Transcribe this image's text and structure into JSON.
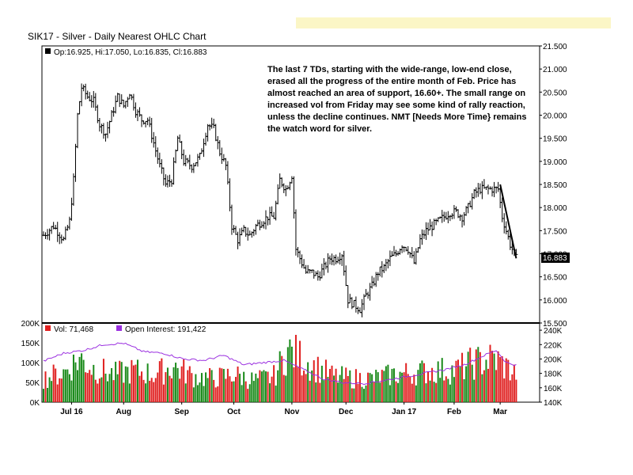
{
  "header": {
    "title": "SIK17 - Silver - Daily Nearest OHLC Chart",
    "banner_color": "#fbf6c6"
  },
  "chart_data": [
    {
      "type": "ohlc",
      "legend": "Op:16.925, Hi:17.050, Lo:16.835, Cl:16.883",
      "last_close_label": "16.883",
      "ylim": [
        15.5,
        21.5
      ],
      "yticks": [
        "15.500",
        "16.000",
        "16.500",
        "17.000",
        "17.500",
        "18.000",
        "18.500",
        "19.000",
        "19.500",
        "20.000",
        "20.500",
        "21.000",
        "21.500"
      ],
      "xlabels": [
        "Jul 16",
        "Aug",
        "Sep",
        "Oct",
        "Nov",
        "Dec",
        "Jan 17",
        "Feb",
        "Mar"
      ],
      "x_label_positions_days": [
        14,
        40,
        69,
        95,
        124,
        151,
        180,
        205,
        228
      ],
      "total_days": 239,
      "trendline": {
        "from": [
          228,
          18.5
        ],
        "to": [
          236,
          16.9
        ]
      },
      "annotation": "The last 7 TDs, starting with the wide-range, low-end close, erased all the progress of the entire month of Feb. Price has almost reached an area of support, 16.60+.  The small range on increased vol from Friday may see some kind of rally reaction, unless the decline continues.  NMT [Needs More Time} remains the watch word for silver.",
      "keypoints": [
        {
          "d": 0,
          "p": 17.4
        },
        {
          "d": 5,
          "p": 17.6
        },
        {
          "d": 10,
          "p": 17.3
        },
        {
          "d": 13,
          "p": 17.7
        },
        {
          "d": 15,
          "p": 18.6
        },
        {
          "d": 17,
          "p": 20.0
        },
        {
          "d": 19,
          "p": 20.6
        },
        {
          "d": 22,
          "p": 20.4
        },
        {
          "d": 25,
          "p": 20.3
        },
        {
          "d": 28,
          "p": 19.8
        },
        {
          "d": 31,
          "p": 19.6
        },
        {
          "d": 34,
          "p": 20.0
        },
        {
          "d": 37,
          "p": 20.4
        },
        {
          "d": 40,
          "p": 20.2
        },
        {
          "d": 43,
          "p": 20.5
        },
        {
          "d": 46,
          "p": 20.1
        },
        {
          "d": 49,
          "p": 19.9
        },
        {
          "d": 52,
          "p": 19.9
        },
        {
          "d": 55,
          "p": 19.4
        },
        {
          "d": 58,
          "p": 18.9
        },
        {
          "d": 61,
          "p": 18.5
        },
        {
          "d": 64,
          "p": 18.6
        },
        {
          "d": 67,
          "p": 19.5
        },
        {
          "d": 70,
          "p": 19.0
        },
        {
          "d": 74,
          "p": 18.9
        },
        {
          "d": 78,
          "p": 19.1
        },
        {
          "d": 82,
          "p": 19.8
        },
        {
          "d": 85,
          "p": 19.7
        },
        {
          "d": 88,
          "p": 19.2
        },
        {
          "d": 91,
          "p": 18.9
        },
        {
          "d": 94,
          "p": 17.6
        },
        {
          "d": 97,
          "p": 17.3
        },
        {
          "d": 100,
          "p": 17.5
        },
        {
          "d": 103,
          "p": 17.4
        },
        {
          "d": 106,
          "p": 17.6
        },
        {
          "d": 109,
          "p": 17.7
        },
        {
          "d": 112,
          "p": 17.8
        },
        {
          "d": 115,
          "p": 17.8
        },
        {
          "d": 118,
          "p": 18.6
        },
        {
          "d": 121,
          "p": 18.4
        },
        {
          "d": 124,
          "p": 18.7
        },
        {
          "d": 126,
          "p": 17.1
        },
        {
          "d": 128,
          "p": 16.9
        },
        {
          "d": 131,
          "p": 16.6
        },
        {
          "d": 134,
          "p": 16.6
        },
        {
          "d": 137,
          "p": 16.5
        },
        {
          "d": 140,
          "p": 16.7
        },
        {
          "d": 143,
          "p": 16.9
        },
        {
          "d": 146,
          "p": 16.9
        },
        {
          "d": 149,
          "p": 17.0
        },
        {
          "d": 152,
          "p": 16.0
        },
        {
          "d": 155,
          "p": 15.9
        },
        {
          "d": 158,
          "p": 15.8
        },
        {
          "d": 161,
          "p": 16.1
        },
        {
          "d": 164,
          "p": 16.3
        },
        {
          "d": 167,
          "p": 16.6
        },
        {
          "d": 170,
          "p": 16.7
        },
        {
          "d": 173,
          "p": 16.9
        },
        {
          "d": 176,
          "p": 17.0
        },
        {
          "d": 179,
          "p": 17.2
        },
        {
          "d": 182,
          "p": 17.1
        },
        {
          "d": 185,
          "p": 16.8
        },
        {
          "d": 188,
          "p": 17.3
        },
        {
          "d": 191,
          "p": 17.5
        },
        {
          "d": 194,
          "p": 17.6
        },
        {
          "d": 197,
          "p": 17.7
        },
        {
          "d": 200,
          "p": 17.8
        },
        {
          "d": 203,
          "p": 17.9
        },
        {
          "d": 206,
          "p": 17.9
        },
        {
          "d": 209,
          "p": 17.8
        },
        {
          "d": 212,
          "p": 18.0
        },
        {
          "d": 215,
          "p": 18.3
        },
        {
          "d": 218,
          "p": 18.4
        },
        {
          "d": 221,
          "p": 18.4
        },
        {
          "d": 224,
          "p": 18.4
        },
        {
          "d": 227,
          "p": 18.4
        },
        {
          "d": 229,
          "p": 17.8
        },
        {
          "d": 231,
          "p": 17.5
        },
        {
          "d": 233,
          "p": 17.2
        },
        {
          "d": 235,
          "p": 17.0
        },
        {
          "d": 236,
          "p": 16.9
        }
      ]
    },
    {
      "type": "bar+line",
      "legend_vol": "Vol: 71,468",
      "legend_oi": "Open Interest: 191,422",
      "vol_ylim": [
        0,
        200000
      ],
      "vol_yticks": [
        "0K",
        "50K",
        "100K",
        "150K",
        "200K"
      ],
      "oi_ylim": [
        140000,
        250000
      ],
      "oi_yticks": [
        "140K",
        "160K",
        "180K",
        "200K",
        "220K",
        "240K"
      ],
      "up_color": "#1a8a1a",
      "down_color": "#e02020",
      "oi_color": "#9b30e0",
      "vol_keypoints": [
        {
          "d": 0,
          "v": 60000
        },
        {
          "d": 10,
          "v": 75000
        },
        {
          "d": 18,
          "v": 110000
        },
        {
          "d": 25,
          "v": 85000
        },
        {
          "d": 35,
          "v": 70000
        },
        {
          "d": 45,
          "v": 80000
        },
        {
          "d": 55,
          "v": 70000
        },
        {
          "d": 65,
          "v": 90000
        },
        {
          "d": 75,
          "v": 65000
        },
        {
          "d": 85,
          "v": 60000
        },
        {
          "d": 95,
          "v": 70000
        },
        {
          "d": 105,
          "v": 55000
        },
        {
          "d": 115,
          "v": 65000
        },
        {
          "d": 122,
          "v": 130000
        },
        {
          "d": 126,
          "v": 120000
        },
        {
          "d": 135,
          "v": 90000
        },
        {
          "d": 145,
          "v": 65000
        },
        {
          "d": 155,
          "v": 60000
        },
        {
          "d": 165,
          "v": 60000
        },
        {
          "d": 175,
          "v": 70000
        },
        {
          "d": 185,
          "v": 75000
        },
        {
          "d": 195,
          "v": 80000
        },
        {
          "d": 205,
          "v": 80000
        },
        {
          "d": 215,
          "v": 100000
        },
        {
          "d": 225,
          "v": 110000
        },
        {
          "d": 236,
          "v": 71468
        }
      ],
      "oi_keypoints": [
        {
          "d": 0,
          "v": 197000
        },
        {
          "d": 10,
          "v": 208000
        },
        {
          "d": 20,
          "v": 212000
        },
        {
          "d": 30,
          "v": 220000
        },
        {
          "d": 40,
          "v": 222000
        },
        {
          "d": 50,
          "v": 210000
        },
        {
          "d": 60,
          "v": 208000
        },
        {
          "d": 70,
          "v": 200000
        },
        {
          "d": 80,
          "v": 198000
        },
        {
          "d": 90,
          "v": 205000
        },
        {
          "d": 100,
          "v": 192000
        },
        {
          "d": 110,
          "v": 195000
        },
        {
          "d": 120,
          "v": 198000
        },
        {
          "d": 130,
          "v": 185000
        },
        {
          "d": 140,
          "v": 172000
        },
        {
          "d": 150,
          "v": 167000
        },
        {
          "d": 160,
          "v": 166000
        },
        {
          "d": 170,
          "v": 170000
        },
        {
          "d": 180,
          "v": 175000
        },
        {
          "d": 190,
          "v": 180000
        },
        {
          "d": 200,
          "v": 185000
        },
        {
          "d": 210,
          "v": 192000
        },
        {
          "d": 220,
          "v": 205000
        },
        {
          "d": 226,
          "v": 212000
        },
        {
          "d": 231,
          "v": 195000
        },
        {
          "d": 236,
          "v": 191422
        }
      ]
    }
  ]
}
